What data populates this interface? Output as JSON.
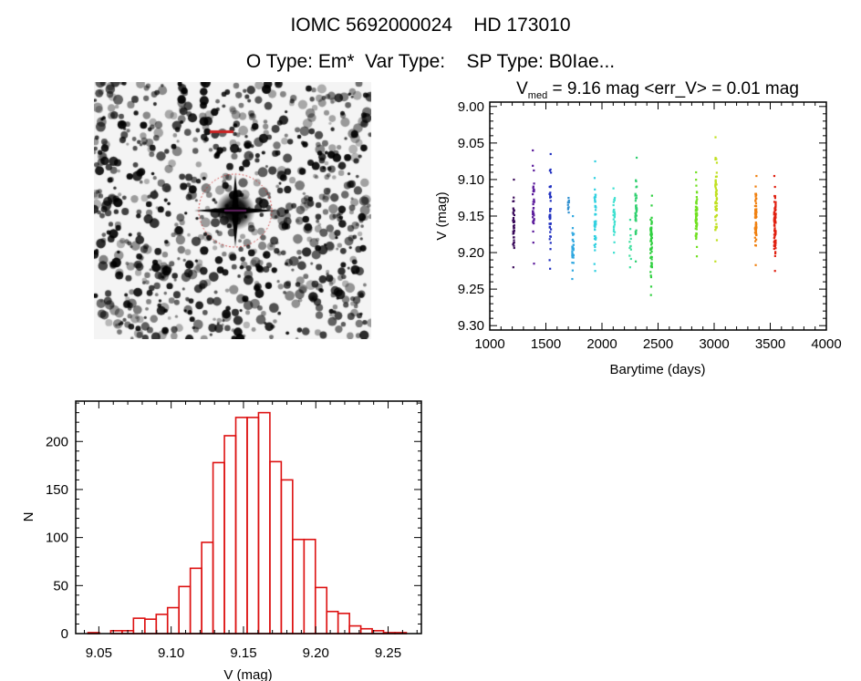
{
  "header": {
    "title_line1": "IOMC 5692000024    HD 173010",
    "title_line2": "O Type: Em*  Var Type:    SP Type: B0Iae..."
  },
  "image_stamp": {
    "label": "finder image"
  },
  "chart_data": [
    {
      "type": "scatter",
      "title_prefix": "V",
      "title_sub": "med",
      "title_rest": " = 9.16 mag <err_V> = 0.01 mag",
      "xlabel": "Barytime (days)",
      "ylabel": "V (mag)",
      "xlim": [
        1000,
        4000
      ],
      "ylim": [
        9.306,
        8.994
      ],
      "xticks": [
        "1000",
        "1500",
        "2000",
        "2500",
        "3000",
        "3500",
        "4000"
      ],
      "yticks": [
        "9.00",
        "9.05",
        "9.10",
        "9.15",
        "9.20",
        "9.25",
        "9.30"
      ],
      "clusters": [
        {
          "t": 1212,
          "vmin": 9.1,
          "vmax": 9.22,
          "n": 40,
          "color": "#3a0a5a"
        },
        {
          "t": 1388,
          "vmin": 9.06,
          "vmax": 9.215,
          "n": 35,
          "color": "#5a1a9a"
        },
        {
          "t": 1538,
          "vmin": 9.065,
          "vmax": 9.222,
          "n": 40,
          "color": "#2030c0"
        },
        {
          "t": 1700,
          "vmin": 9.125,
          "vmax": 9.145,
          "n": 10,
          "color": "#3090d0"
        },
        {
          "t": 1741,
          "vmin": 9.15,
          "vmax": 9.236,
          "n": 30,
          "color": "#30a8e0"
        },
        {
          "t": 1939,
          "vmin": 9.075,
          "vmax": 9.225,
          "n": 45,
          "color": "#30d0e0"
        },
        {
          "t": 2108,
          "vmin": 9.112,
          "vmax": 9.2,
          "n": 30,
          "color": "#40e0d0"
        },
        {
          "t": 2252,
          "vmin": 9.155,
          "vmax": 9.22,
          "n": 12,
          "color": "#40e0a0"
        },
        {
          "t": 2303,
          "vmin": 9.07,
          "vmax": 9.212,
          "n": 40,
          "color": "#30d070"
        },
        {
          "t": 2439,
          "vmin": 9.122,
          "vmax": 9.258,
          "n": 55,
          "color": "#30d040"
        },
        {
          "t": 2841,
          "vmin": 9.09,
          "vmax": 9.205,
          "n": 60,
          "color": "#70e020"
        },
        {
          "t": 3017,
          "vmin": 9.042,
          "vmax": 9.212,
          "n": 55,
          "color": "#c0e020"
        },
        {
          "t": 3370,
          "vmin": 9.095,
          "vmax": 9.217,
          "n": 70,
          "color": "#f08010"
        },
        {
          "t": 3541,
          "vmin": 9.095,
          "vmax": 9.225,
          "n": 90,
          "color": "#e02010"
        }
      ]
    },
    {
      "type": "bar",
      "subtype": "histogram",
      "xlabel": "V (mag)",
      "ylabel": "N",
      "xlim": [
        9.034,
        9.273
      ],
      "ylim": [
        0,
        242
      ],
      "xticks": [
        "9.05",
        "9.10",
        "9.15",
        "9.20",
        "9.25"
      ],
      "yticks": [
        "0",
        "50",
        "100",
        "150",
        "200"
      ],
      "bin_start": 9.0425,
      "bin_width": 0.00786,
      "values": [
        1,
        0,
        3,
        3,
        16,
        15,
        20,
        27,
        49,
        68,
        95,
        178,
        206,
        225,
        225,
        230,
        179,
        160,
        98,
        98,
        48,
        23,
        21,
        8,
        5,
        3,
        1,
        1
      ],
      "bar_color": "#dd1111"
    }
  ]
}
